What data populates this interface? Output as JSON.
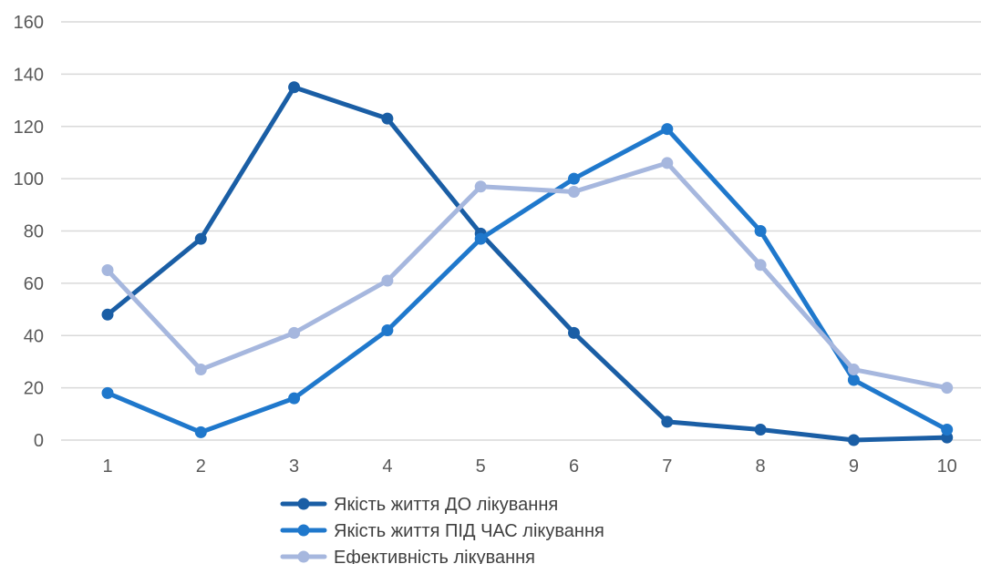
{
  "chart_data": {
    "type": "line",
    "x": [
      1,
      2,
      3,
      4,
      5,
      6,
      7,
      8,
      9,
      10
    ],
    "ylim": [
      0,
      160
    ],
    "yticks": [
      0,
      20,
      40,
      60,
      80,
      100,
      120,
      140,
      160
    ],
    "grid": true,
    "legend_position": "bottom",
    "series": [
      {
        "name": "Якість життя ДО лікування",
        "color": "#1a5ea5",
        "values": [
          48,
          77,
          135,
          123,
          79,
          41,
          7,
          4,
          0,
          1
        ]
      },
      {
        "name": "Якість життя ПІД ЧАС лікування",
        "color": "#1f78cc",
        "values": [
          18,
          3,
          16,
          42,
          77,
          100,
          119,
          80,
          23,
          4
        ]
      },
      {
        "name": "Ефективність лікування",
        "color": "#a6b7de",
        "values": [
          65,
          27,
          41,
          61,
          97,
          95,
          106,
          67,
          27,
          20
        ]
      }
    ]
  }
}
